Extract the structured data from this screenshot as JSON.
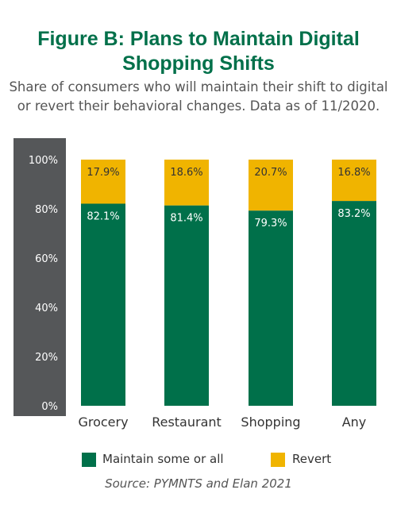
{
  "title_line1": "Figure B: Plans to Maintain Digital",
  "title_line2": "Shopping Shifts",
  "subtitle_line1": "Share of consumers who will maintain their shift to digital",
  "subtitle_line2": "or revert their behavioral changes. Data as of 11/2020.",
  "source": "Source: PYMNTS and Elan 2021",
  "colors": {
    "maintain": "#00704a",
    "revert": "#f0b400",
    "axis_panel": "#555759"
  },
  "chart_data": {
    "type": "bar",
    "stacked": true,
    "categories": [
      "Grocery",
      "Restaurant",
      "Shopping",
      "Any"
    ],
    "series": [
      {
        "name": "Maintain some or all",
        "values": [
          82.1,
          81.4,
          79.3,
          83.2
        ],
        "labels": [
          "82.1%",
          "81.4%",
          "79.3%",
          "83.2%"
        ]
      },
      {
        "name": "Revert",
        "values": [
          17.9,
          18.6,
          20.7,
          16.8
        ],
        "labels": [
          "17.9%",
          "18.6%",
          "20.7%",
          "16.8%"
        ]
      }
    ],
    "yticks": [
      "0%",
      "20%",
      "40%",
      "60%",
      "80%",
      "100%"
    ],
    "ylim": [
      0,
      100
    ],
    "legend_position": "bottom",
    "grid": false
  }
}
